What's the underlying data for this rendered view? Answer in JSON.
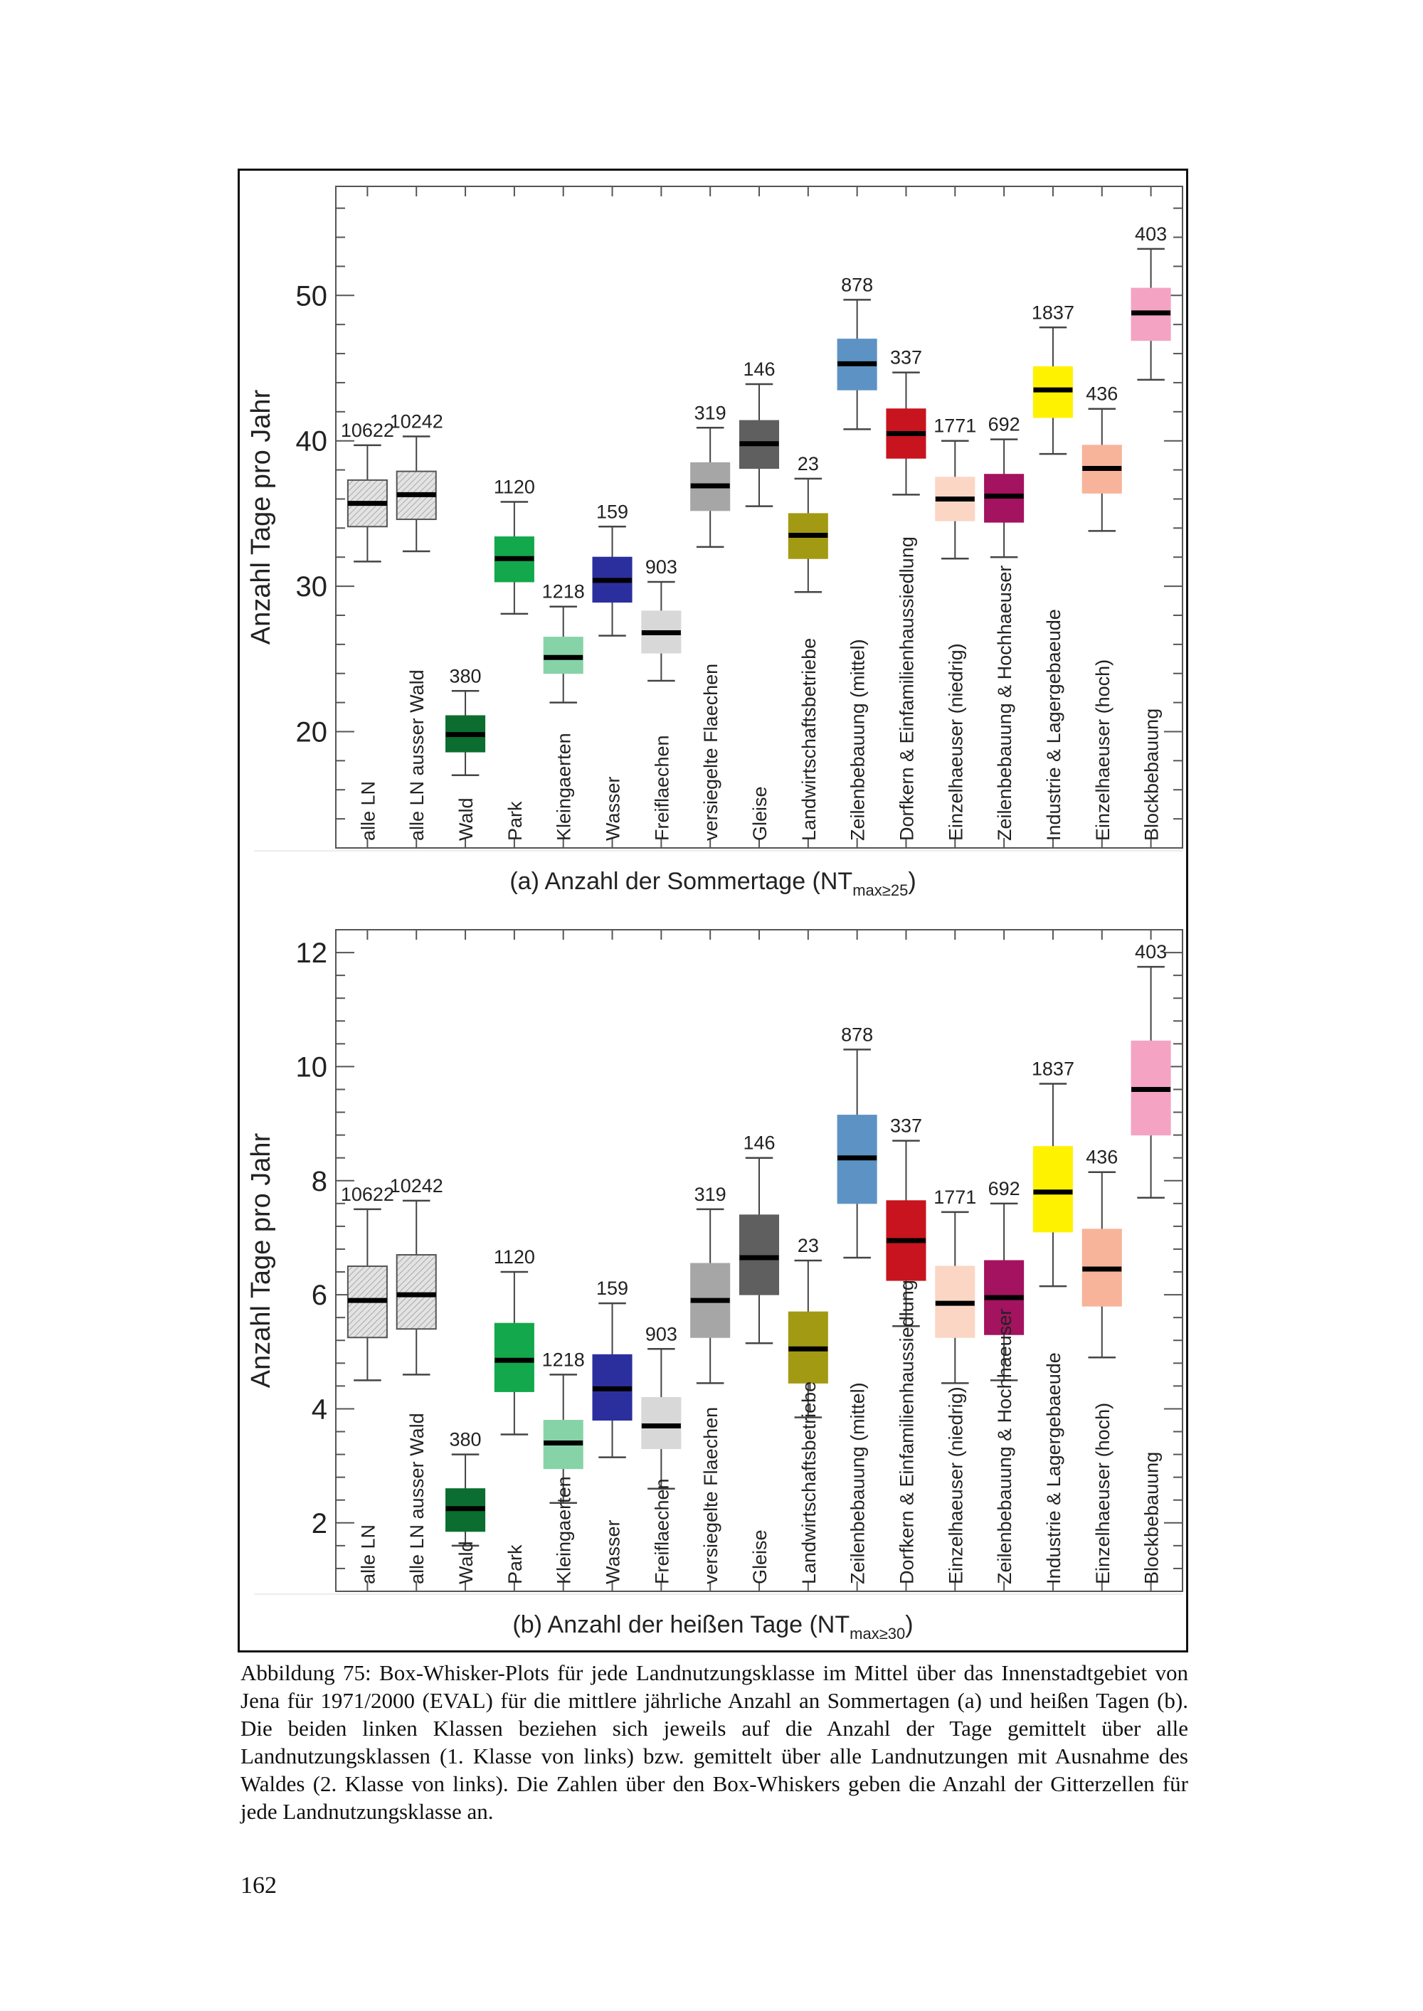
{
  "chart_data": [
    {
      "type": "box",
      "panel_label": "(a) Anzahl der Sommertage (NT",
      "title_subscript": "max≥25",
      "title_suffix": ")",
      "ylabel": "Anzahl Tage pro Jahr",
      "ylim": [
        12,
        57.5
      ],
      "yticks": [
        20,
        30,
        40,
        50
      ],
      "ytick_labels": [
        "20",
        "30",
        "40",
        "50"
      ],
      "grid": false,
      "categories": [
        {
          "label": "alle LN",
          "count": "10622",
          "color": "#d9d9d9",
          "hatched": true,
          "whisker_low": 31.7,
          "q1": 34.1,
          "median": 35.7,
          "q3": 37.3,
          "whisker_high": 39.7
        },
        {
          "label": "alle LN ausser Wald",
          "count": "10242",
          "color": "#d9d9d9",
          "hatched": true,
          "whisker_low": 32.4,
          "q1": 34.6,
          "median": 36.3,
          "q3": 37.9,
          "whisker_high": 40.3
        },
        {
          "label": "Wald",
          "count": "380",
          "color": "#0b6e30",
          "hatched": false,
          "whisker_low": 17.0,
          "q1": 18.6,
          "median": 19.8,
          "q3": 21.1,
          "whisker_high": 22.8
        },
        {
          "label": "Park",
          "count": "1120",
          "color": "#13a84b",
          "hatched": false,
          "whisker_low": 28.1,
          "q1": 30.3,
          "median": 31.9,
          "q3": 33.4,
          "whisker_high": 35.8
        },
        {
          "label": "Kleingaerten",
          "count": "1218",
          "color": "#86d3a7",
          "hatched": false,
          "whisker_low": 22.0,
          "q1": 24.0,
          "median": 25.1,
          "q3": 26.5,
          "whisker_high": 28.6
        },
        {
          "label": "Wasser",
          "count": "159",
          "color": "#2b2f9e",
          "hatched": false,
          "whisker_low": 26.6,
          "q1": 28.9,
          "median": 30.4,
          "q3": 32.0,
          "whisker_high": 34.1
        },
        {
          "label": "Freiflaechen",
          "count": "903",
          "color": "#d8d8d8",
          "hatched": false,
          "whisker_low": 23.5,
          "q1": 25.4,
          "median": 26.8,
          "q3": 28.3,
          "whisker_high": 30.3
        },
        {
          "label": "versiegelte Flaechen",
          "count": "319",
          "color": "#a6a6a6",
          "hatched": false,
          "whisker_low": 32.7,
          "q1": 35.2,
          "median": 36.9,
          "q3": 38.5,
          "whisker_high": 40.9
        },
        {
          "label": "Gleise",
          "count": "146",
          "color": "#5f5f5f",
          "hatched": false,
          "whisker_low": 35.5,
          "q1": 38.1,
          "median": 39.8,
          "q3": 41.4,
          "whisker_high": 43.9
        },
        {
          "label": "Landwirtschaftsbetriebe",
          "count": "23",
          "color": "#a39a14",
          "hatched": false,
          "whisker_low": 29.6,
          "q1": 31.9,
          "median": 33.5,
          "q3": 35.0,
          "whisker_high": 37.4
        },
        {
          "label": "Zeilenbebauung (mittel)",
          "count": "878",
          "color": "#5d93c4",
          "hatched": false,
          "whisker_low": 40.8,
          "q1": 43.5,
          "median": 45.3,
          "q3": 47.0,
          "whisker_high": 49.7
        },
        {
          "label": "Dorfkern & Einfamilienhaussiedlung",
          "count": "337",
          "color": "#c8141e",
          "hatched": false,
          "whisker_low": 36.3,
          "q1": 38.8,
          "median": 40.5,
          "q3": 42.2,
          "whisker_high": 44.7
        },
        {
          "label": "Einzelhaeuser (niedrig)",
          "count": "1771",
          "color": "#fbd6c4",
          "hatched": false,
          "whisker_low": 31.9,
          "q1": 34.5,
          "median": 36.0,
          "q3": 37.5,
          "whisker_high": 40.0
        },
        {
          "label": "Zeilenbebauung & Hochhaeuser",
          "count": "692",
          "color": "#a3135f",
          "hatched": false,
          "whisker_low": 32.0,
          "q1": 34.4,
          "median": 36.2,
          "q3": 37.7,
          "whisker_high": 40.1
        },
        {
          "label": "Industrie & Lagergebaeude",
          "count": "1837",
          "color": "#fff200",
          "hatched": false,
          "whisker_low": 39.1,
          "q1": 41.6,
          "median": 43.5,
          "q3": 45.1,
          "whisker_high": 47.8
        },
        {
          "label": "Einzelhaeuser (hoch)",
          "count": "436",
          "color": "#f7b49a",
          "hatched": false,
          "whisker_low": 33.8,
          "q1": 36.4,
          "median": 38.1,
          "q3": 39.7,
          "whisker_high": 42.2
        },
        {
          "label": "Blockbebauung",
          "count": "403",
          "color": "#f4a3c3",
          "hatched": false,
          "whisker_low": 44.2,
          "q1": 46.9,
          "median": 48.8,
          "q3": 50.5,
          "whisker_high": 53.2
        }
      ]
    },
    {
      "type": "box",
      "panel_label": "(b) Anzahl der heißen Tage (NT",
      "title_subscript": "max≥30",
      "title_suffix": ")",
      "ylabel": "Anzahl Tage pro Jahr",
      "ylim": [
        0.8,
        12.4
      ],
      "yticks": [
        2,
        4,
        6,
        8,
        10,
        12
      ],
      "ytick_labels": [
        "2",
        "4",
        "6",
        "8",
        "10",
        "12"
      ],
      "grid": false,
      "categories": [
        {
          "label": "alle LN",
          "count": "10622",
          "color": "#d9d9d9",
          "hatched": true,
          "whisker_low": 4.5,
          "q1": 5.25,
          "median": 5.9,
          "q3": 6.5,
          "whisker_high": 7.5
        },
        {
          "label": "alle LN ausser Wald",
          "count": "10242",
          "color": "#d9d9d9",
          "hatched": true,
          "whisker_low": 4.6,
          "q1": 5.4,
          "median": 6.0,
          "q3": 6.7,
          "whisker_high": 7.65
        },
        {
          "label": "Wald",
          "count": "380",
          "color": "#0b6e30",
          "hatched": false,
          "whisker_low": 1.6,
          "q1": 1.85,
          "median": 2.25,
          "q3": 2.6,
          "whisker_high": 3.2
        },
        {
          "label": "Park",
          "count": "1120",
          "color": "#13a84b",
          "hatched": false,
          "whisker_low": 3.55,
          "q1": 4.3,
          "median": 4.85,
          "q3": 5.5,
          "whisker_high": 6.4
        },
        {
          "label": "Kleingaerten",
          "count": "1218",
          "color": "#86d3a7",
          "hatched": false,
          "whisker_low": 2.35,
          "q1": 2.95,
          "median": 3.4,
          "q3": 3.8,
          "whisker_high": 4.6
        },
        {
          "label": "Wasser",
          "count": "159",
          "color": "#2b2f9e",
          "hatched": false,
          "whisker_low": 3.15,
          "q1": 3.8,
          "median": 4.35,
          "q3": 4.95,
          "whisker_high": 5.85
        },
        {
          "label": "Freiflaechen",
          "count": "903",
          "color": "#d8d8d8",
          "hatched": false,
          "whisker_low": 2.6,
          "q1": 3.3,
          "median": 3.7,
          "q3": 4.2,
          "whisker_high": 5.05
        },
        {
          "label": "versiegelte Flaechen",
          "count": "319",
          "color": "#a6a6a6",
          "hatched": false,
          "whisker_low": 4.45,
          "q1": 5.25,
          "median": 5.9,
          "q3": 6.55,
          "whisker_high": 7.5
        },
        {
          "label": "Gleise",
          "count": "146",
          "color": "#5f5f5f",
          "hatched": false,
          "whisker_low": 5.15,
          "q1": 6.0,
          "median": 6.65,
          "q3": 7.4,
          "whisker_high": 8.4
        },
        {
          "label": "Landwirtschaftsbetriebe",
          "count": "23",
          "color": "#a39a14",
          "hatched": false,
          "whisker_low": 3.85,
          "q1": 4.45,
          "median": 5.05,
          "q3": 5.7,
          "whisker_high": 6.6
        },
        {
          "label": "Zeilenbebauung (mittel)",
          "count": "878",
          "color": "#5d93c4",
          "hatched": false,
          "whisker_low": 6.65,
          "q1": 7.6,
          "median": 8.4,
          "q3": 9.15,
          "whisker_high": 10.3
        },
        {
          "label": "Dorfkern & Einfamilienhaussiedlung",
          "count": "337",
          "color": "#c8141e",
          "hatched": false,
          "whisker_low": 5.45,
          "q1": 6.25,
          "median": 6.95,
          "q3": 7.65,
          "whisker_high": 8.7
        },
        {
          "label": "Einzelhaeuser (niedrig)",
          "count": "1771",
          "color": "#fbd6c4",
          "hatched": false,
          "whisker_low": 4.45,
          "q1": 5.25,
          "median": 5.85,
          "q3": 6.5,
          "whisker_high": 7.45
        },
        {
          "label": "Zeilenbebauung & Hochhaeuser",
          "count": "692",
          "color": "#a3135f",
          "hatched": false,
          "whisker_low": 4.5,
          "q1": 5.3,
          "median": 5.95,
          "q3": 6.6,
          "whisker_high": 7.6
        },
        {
          "label": "Industrie & Lagergebaeude",
          "count": "1837",
          "color": "#fff200",
          "hatched": false,
          "whisker_low": 6.15,
          "q1": 7.1,
          "median": 7.8,
          "q3": 8.6,
          "whisker_high": 9.7
        },
        {
          "label": "Einzelhaeuser (hoch)",
          "count": "436",
          "color": "#f7b49a",
          "hatched": false,
          "whisker_low": 4.9,
          "q1": 5.8,
          "median": 6.45,
          "q3": 7.15,
          "whisker_high": 8.15
        },
        {
          "label": "Blockbebauung",
          "count": "403",
          "color": "#f4a3c3",
          "hatched": false,
          "whisker_low": 7.7,
          "q1": 8.8,
          "median": 9.6,
          "q3": 10.45,
          "whisker_high": 11.75
        }
      ]
    }
  ],
  "caption": "Abbildung 75: Box-Whisker-Plots für jede Landnutzungsklasse im Mittel über das Innenstadtgebiet von Jena für 1971/2000 (EVAL) für die mittlere jährliche Anzahl an Sommertagen (a) und heißen Tagen (b). Die beiden linken Klassen beziehen sich jeweils auf die Anzahl der Tage gemittelt über alle Landnutzungsklassen (1. Klasse von links) bzw. gemittelt über alle Landnutzungen mit Ausnahme des Waldes (2. Klasse von links). Die Zahlen über den Box-Whiskers geben die Anzahl der Gitterzellen für jede Landnutzungsklasse an.",
  "page_number": "162"
}
